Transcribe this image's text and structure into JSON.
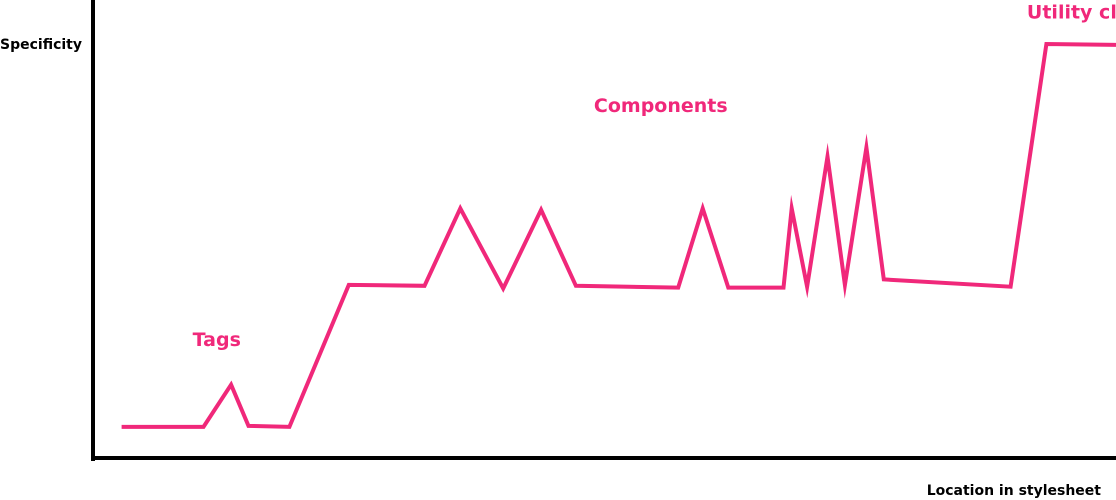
{
  "chart_data": {
    "type": "line",
    "title": "",
    "xlabel": "Location in stylesheet",
    "ylabel": "Specificity",
    "xlim": [
      0,
      100
    ],
    "ylim": [
      0,
      100
    ],
    "grid": false,
    "legend": "none",
    "axis_color": "#000000",
    "line_color": "#f0287a",
    "series": [
      {
        "x": [
          2.8,
          10.8,
          13.5,
          15.2,
          19.2,
          25.0,
          32.4,
          35.9,
          40.1,
          43.8,
          47.2,
          57.2,
          59.6,
          62.1,
          67.5,
          68.3,
          69.8,
          71.8,
          73.5,
          75.6,
          77.3,
          89.7,
          93.2,
          100.0
        ],
        "y": [
          6.8,
          6.8,
          16.0,
          7.0,
          6.8,
          37.8,
          37.6,
          54.5,
          37.0,
          54.2,
          37.6,
          37.2,
          54.5,
          37.2,
          37.2,
          54.5,
          37.4,
          65.8,
          37.8,
          67.8,
          39.0,
          37.4,
          90.4,
          90.2
        ]
      }
    ],
    "annotations": [
      {
        "text": "Tags",
        "x": 12.1,
        "y": 24.5
      },
      {
        "text": "Components",
        "x": 55.5,
        "y": 75.5
      },
      {
        "text": "Utility classes",
        "x": 98.6,
        "y": 96.0
      }
    ]
  }
}
